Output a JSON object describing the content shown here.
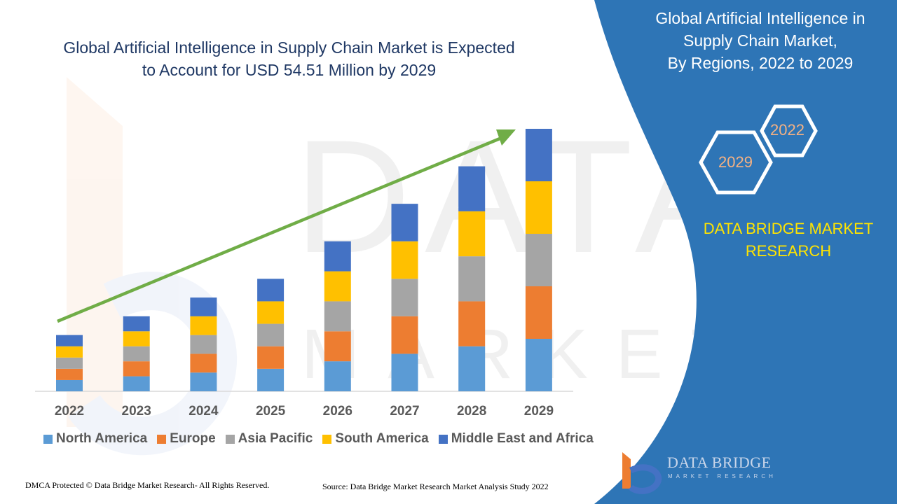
{
  "header": {
    "title_line1": "Global Artificial Intelligence in Supply Chain Market is Expected",
    "title_line2": "to Account for USD 54.51 Million by 2029"
  },
  "panel": {
    "title_line1": "Global Artificial Intelligence in",
    "title_line2": "Supply Chain Market,",
    "title_line3": "By Regions, 2022 to 2029",
    "hex_top": "2022",
    "hex_bottom": "2029",
    "brand_line1": "DATA BRIDGE MARKET",
    "brand_line2": "RESEARCH",
    "background_color": "#2e75b6"
  },
  "logo": {
    "name": "DATA BRIDGE",
    "sub": "MARKET RESEARCH"
  },
  "footer": {
    "left": "DMCA Protected © Data Bridge Market Research- All Rights Reserved.",
    "right": "Source: Data Bridge Market Research Market Analysis Study 2022"
  },
  "chart_data": {
    "type": "bar",
    "stacked": true,
    "categories": [
      "2022",
      "2023",
      "2024",
      "2025",
      "2026",
      "2027",
      "2028",
      "2029"
    ],
    "series": [
      {
        "name": "North America",
        "color": "#5b9bd5",
        "values": [
          3.0,
          4.0,
          5.0,
          6.0,
          8.0,
          10.0,
          12.0,
          14.0
        ]
      },
      {
        "name": "Europe",
        "color": "#ed7d31",
        "values": [
          3.0,
          4.0,
          5.0,
          6.0,
          8.0,
          10.0,
          12.0,
          14.0
        ]
      },
      {
        "name": "Asia Pacific",
        "color": "#a5a5a5",
        "values": [
          3.0,
          4.0,
          5.0,
          6.0,
          8.0,
          10.0,
          12.0,
          14.0
        ]
      },
      {
        "name": "South America",
        "color": "#ffc000",
        "values": [
          3.0,
          4.0,
          5.0,
          6.0,
          8.0,
          10.0,
          12.0,
          14.0
        ]
      },
      {
        "name": "Middle East and Africa",
        "color": "#4472c4",
        "values": [
          3.0,
          4.0,
          5.0,
          6.0,
          8.0,
          10.0,
          12.0,
          14.0
        ]
      }
    ],
    "ylim": [
      0,
      70
    ],
    "trend_arrow": true,
    "trend_arrow_color": "#70ad47",
    "legend_position": "bottom",
    "grid": false
  }
}
